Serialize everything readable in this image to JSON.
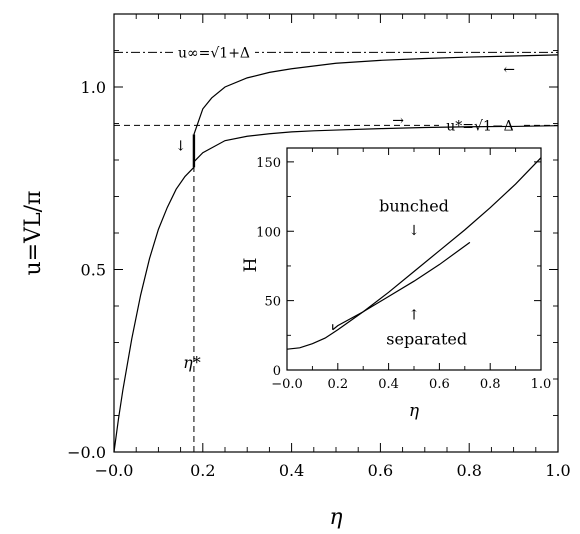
{
  "chart_data": [
    {
      "type": "line",
      "xlabel": "η",
      "ylabel": "u=VL/π",
      "xlim": [
        0.0,
        1.0
      ],
      "ylim": [
        0.0,
        1.2
      ],
      "xticks": [
        0.0,
        0.2,
        0.4,
        0.6,
        0.8,
        1.0
      ],
      "xtick_labels": [
        "−0.0",
        "0.2",
        "0.4",
        "0.6",
        "0.8",
        "1.0"
      ],
      "yticks": [
        0.0,
        0.5,
        1.0
      ],
      "ytick_labels": [
        "−0.0",
        "0.5",
        "1.0"
      ],
      "grid": false,
      "series": [
        {
          "style": "solid",
          "x": [
            0.0,
            0.01,
            0.02,
            0.04,
            0.06,
            0.08,
            0.1,
            0.12,
            0.14,
            0.16,
            0.18
          ],
          "y": [
            0.0,
            0.09,
            0.17,
            0.31,
            0.43,
            0.53,
            0.61,
            0.67,
            0.72,
            0.755,
            0.78
          ]
        },
        {
          "style": "solid",
          "x": [
            0.18,
            0.2,
            0.22,
            0.25,
            0.3,
            0.35,
            0.4,
            0.5,
            0.6,
            0.7,
            0.8,
            0.9,
            1.0
          ],
          "y": [
            0.87,
            0.94,
            0.97,
            1.0,
            1.025,
            1.04,
            1.05,
            1.065,
            1.073,
            1.078,
            1.082,
            1.085,
            1.088
          ]
        },
        {
          "style": "solid",
          "x": [
            0.18,
            0.2,
            0.25,
            0.3,
            0.35,
            0.4,
            0.45,
            0.5,
            0.6,
            0.7,
            0.8,
            0.9,
            1.0
          ],
          "y": [
            0.795,
            0.82,
            0.853,
            0.865,
            0.872,
            0.877,
            0.88,
            0.882,
            0.886,
            0.889,
            0.891,
            0.892,
            0.894
          ]
        }
      ],
      "reference_lines": [
        {
          "label": "u∞=√1+Δ",
          "y": 1.095,
          "style": "dashdot"
        },
        {
          "label": "u*=√1−Δ",
          "y": 0.895,
          "style": "dashed"
        },
        {
          "label": "η*",
          "x": 0.18,
          "style": "dashed"
        }
      ],
      "annotations": [
        {
          "text": "←",
          "x": 0.89,
          "y": 1.05
        },
        {
          "text": "→",
          "x": 0.64,
          "y": 0.91
        },
        {
          "text": "↓",
          "x": 0.15,
          "y": 0.84
        }
      ]
    },
    {
      "type": "line",
      "inset": true,
      "xlabel": "η",
      "ylabel": "H",
      "xlim": [
        0.0,
        1.0
      ],
      "ylim": [
        0,
        160
      ],
      "xticks": [
        0.0,
        0.2,
        0.4,
        0.6,
        0.8,
        1.0
      ],
      "xtick_labels": [
        "−0.0",
        "0.2",
        "0.4",
        "0.6",
        "0.8",
        "1.0"
      ],
      "yticks": [
        0,
        50,
        100,
        150
      ],
      "ytick_labels": [
        "0",
        "50",
        "100",
        "150"
      ],
      "grid": false,
      "series": [
        {
          "name": "bunched",
          "x": [
            0.0,
            0.05,
            0.1,
            0.15,
            0.2,
            0.3,
            0.4,
            0.5,
            0.6,
            0.7,
            0.8,
            0.9,
            1.0
          ],
          "y": [
            15,
            16,
            19,
            23,
            29,
            42,
            56,
            71,
            86,
            101,
            117,
            134,
            153
          ]
        },
        {
          "name": "separated",
          "x": [
            0.18,
            0.2,
            0.3,
            0.4,
            0.5,
            0.6,
            0.72
          ],
          "y": [
            29,
            32,
            42,
            53,
            64,
            76,
            92
          ]
        }
      ],
      "annotations": [
        {
          "text": "bunched",
          "x": 0.5,
          "y": 118
        },
        {
          "text": "↓",
          "x": 0.5,
          "y": 101
        },
        {
          "text": "↑",
          "x": 0.5,
          "y": 40
        },
        {
          "text": "separated",
          "x": 0.55,
          "y": 22
        }
      ]
    }
  ],
  "labels": {
    "u_inf_label": "u∞=√1+Δ",
    "u_star_label": "u*=√1−Δ",
    "eta_star_label": "η*",
    "inset_bunched": "bunched",
    "inset_separated": "separated",
    "arrow_left": "←",
    "arrow_right": "→",
    "arrow_down": "↓",
    "arrow_up": "↑"
  }
}
